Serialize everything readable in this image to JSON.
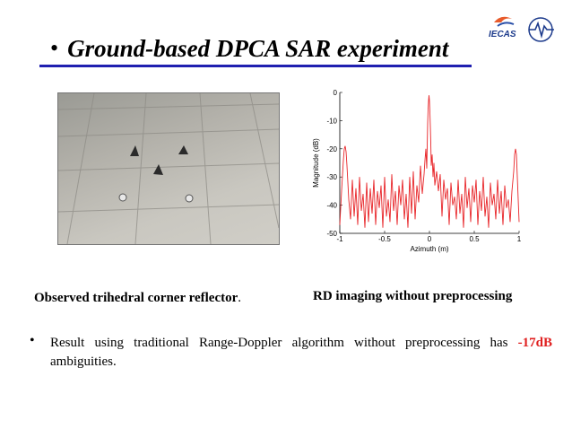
{
  "slide": {
    "title_bullet": "•",
    "title": "Ground-based DPCA SAR experiment",
    "logo_text": "IECAS"
  },
  "captions": {
    "left": "Observed trihedral corner reflector",
    "left_punct": ".",
    "right": "RD imaging without preprocessing"
  },
  "body": {
    "bullet": "•",
    "text_part1": "Result using traditional Range-Doppler  algorithm without preprocessing has",
    "highlight": "-17dB",
    "text_part2": " ambiguities."
  },
  "colors": {
    "title_rule": "#1f1fb0",
    "highlight": "#e02020",
    "plot_line": "#e8262a"
  },
  "chart_data": {
    "type": "line",
    "xlabel": "Azimuth (m)",
    "ylabel": "Magnitude (dB)",
    "xlim": [
      -1,
      1
    ],
    "ylim": [
      -50,
      0
    ],
    "xticks": [
      "-1",
      "-0.5",
      "0",
      "0.5",
      "1"
    ],
    "yticks": [
      "0",
      "-10",
      "-20",
      "-30",
      "-40",
      "-50"
    ],
    "grid": false,
    "series": [
      {
        "x": [
          -1.0,
          -0.98,
          -0.96,
          -0.95,
          -0.94,
          -0.93,
          -0.92,
          -0.9,
          -0.88,
          -0.86,
          -0.84,
          -0.82,
          -0.8,
          -0.78,
          -0.76,
          -0.74,
          -0.72,
          -0.7,
          -0.68,
          -0.66,
          -0.64,
          -0.62,
          -0.6,
          -0.58,
          -0.56,
          -0.54,
          -0.52,
          -0.5,
          -0.48,
          -0.46,
          -0.44,
          -0.42,
          -0.4,
          -0.38,
          -0.36,
          -0.34,
          -0.32,
          -0.3,
          -0.28,
          -0.26,
          -0.24,
          -0.22,
          -0.2,
          -0.18,
          -0.16,
          -0.14,
          -0.12,
          -0.1,
          -0.08,
          -0.06,
          -0.05,
          -0.04,
          -0.03,
          -0.02,
          -0.015,
          -0.01,
          -0.005,
          0.0,
          0.005,
          0.01,
          0.015,
          0.02,
          0.03,
          0.04,
          0.05,
          0.06,
          0.08,
          0.1,
          0.12,
          0.14,
          0.16,
          0.18,
          0.2,
          0.22,
          0.24,
          0.26,
          0.28,
          0.3,
          0.32,
          0.34,
          0.36,
          0.38,
          0.4,
          0.42,
          0.44,
          0.46,
          0.48,
          0.5,
          0.52,
          0.54,
          0.56,
          0.58,
          0.6,
          0.62,
          0.64,
          0.66,
          0.68,
          0.7,
          0.72,
          0.74,
          0.76,
          0.78,
          0.8,
          0.82,
          0.84,
          0.86,
          0.88,
          0.9,
          0.92,
          0.94,
          0.95,
          0.96,
          0.97,
          0.98,
          1.0
        ],
        "y": [
          -47,
          -35,
          -24,
          -20,
          -19,
          -21,
          -26,
          -38,
          -45,
          -31,
          -44,
          -34,
          -47,
          -30,
          -42,
          -36,
          -48,
          -32,
          -46,
          -34,
          -43,
          -31,
          -47,
          -35,
          -41,
          -33,
          -48,
          -30,
          -44,
          -38,
          -46,
          -29,
          -42,
          -35,
          -47,
          -33,
          -40,
          -31,
          -45,
          -36,
          -48,
          -30,
          -43,
          -28,
          -45,
          -33,
          -39,
          -26,
          -36,
          -29,
          -24,
          -20,
          -27,
          -11,
          -6,
          -3,
          -1,
          -3,
          -7,
          -12,
          -18,
          -26,
          -22,
          -30,
          -25,
          -33,
          -28,
          -35,
          -29,
          -44,
          -31,
          -38,
          -34,
          -47,
          -32,
          -40,
          -37,
          -45,
          -31,
          -43,
          -36,
          -48,
          -30,
          -41,
          -34,
          -46,
          -33,
          -39,
          -31,
          -47,
          -35,
          -42,
          -30,
          -44,
          -37,
          -48,
          -32,
          -40,
          -36,
          -45,
          -31,
          -43,
          -35,
          -47,
          -33,
          -41,
          -38,
          -46,
          -35,
          -28,
          -22,
          -20,
          -22,
          -30,
          -46
        ]
      }
    ]
  }
}
